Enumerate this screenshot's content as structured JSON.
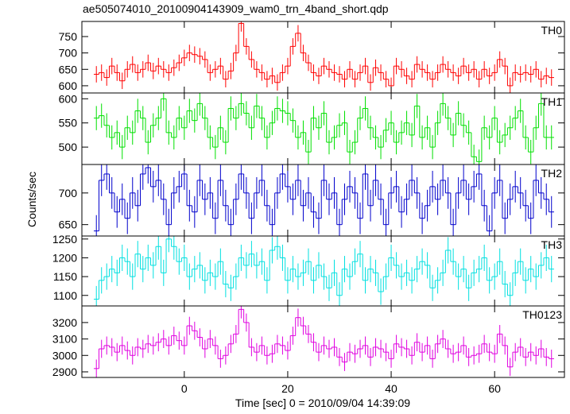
{
  "chart_data": {
    "type": "line",
    "title": "ae505074010_20100904143909_wam0_trn_4band_short.qdp",
    "xlabel": "Time [sec] 0 = 2010/09/04 14:39:09",
    "ylabel": "Counts/sec",
    "xlim": [
      -19.8,
      73.5
    ],
    "xticks": [
      0,
      20,
      40,
      60
    ],
    "x": [
      -17,
      -16,
      -15,
      -14,
      -13,
      -12,
      -11,
      -10,
      -9,
      -8,
      -7,
      -6,
      -5,
      -4,
      -3,
      -2,
      -1,
      0,
      1,
      2,
      3,
      4,
      5,
      6,
      7,
      8,
      9,
      10,
      11,
      12,
      13,
      14,
      15,
      16,
      17,
      18,
      19,
      20,
      21,
      22,
      23,
      24,
      25,
      26,
      27,
      28,
      29,
      30,
      31,
      32,
      33,
      34,
      35,
      36,
      37,
      38,
      39,
      40,
      41,
      42,
      43,
      44,
      45,
      46,
      47,
      48,
      49,
      50,
      51,
      52,
      53,
      54,
      55,
      56,
      57,
      58,
      59,
      60,
      61,
      62,
      63,
      64,
      65,
      66,
      67,
      68,
      69,
      70,
      71
    ],
    "series": [
      {
        "name": "TH0",
        "color": "#ff0000",
        "error": 25,
        "ylim": [
          578,
          796
        ],
        "yticks": [
          600,
          650,
          700,
          750
        ],
        "values": [
          635,
          640,
          625,
          660,
          640,
          615,
          650,
          665,
          640,
          650,
          670,
          645,
          660,
          650,
          640,
          655,
          670,
          685,
          700,
          695,
          690,
          680,
          640,
          650,
          660,
          620,
          645,
          700,
          790,
          720,
          680,
          650,
          640,
          620,
          630,
          610,
          640,
          660,
          720,
          760,
          700,
          670,
          640,
          630,
          660,
          650,
          640,
          635,
          620,
          650,
          620,
          640,
          660,
          610,
          655,
          640,
          620,
          600,
          660,
          650,
          630,
          620,
          665,
          650,
          640,
          620,
          640,
          665,
          650,
          640,
          630,
          660,
          640,
          650,
          620,
          650,
          630,
          640,
          680,
          660,
          600,
          640,
          635,
          640,
          635,
          650,
          620,
          630,
          625
        ]
      },
      {
        "name": "TH1",
        "color": "#00e000",
        "error": 25,
        "ylim": [
          464,
          612
        ],
        "yticks": [
          500,
          550,
          600
        ],
        "values": [
          560,
          565,
          545,
          520,
          530,
          500,
          540,
          530,
          575,
          560,
          510,
          545,
          560,
          600,
          530,
          520,
          560,
          540,
          575,
          555,
          590,
          560,
          520,
          500,
          540,
          510,
          580,
          560,
          590,
          570,
          540,
          585,
          560,
          520,
          550,
          580,
          575,
          570,
          555,
          520,
          530,
          490,
          560,
          540,
          570,
          510,
          520,
          545,
          550,
          490,
          510,
          560,
          580,
          540,
          520,
          500,
          535,
          550,
          510,
          530,
          550,
          525,
          585,
          520,
          540,
          500,
          550,
          590,
          560,
          525,
          570,
          545,
          530,
          480,
          470,
          540,
          520,
          560,
          510,
          525,
          540,
          560,
          575,
          520,
          490,
          540,
          590,
          520,
          520
        ]
      },
      {
        "name": "TH2",
        "color": "#0000cc",
        "error": 25,
        "ylim": [
          632,
          745
        ],
        "yticks": [
          650,
          700
        ],
        "values": [
          640,
          720,
          730,
          700,
          670,
          690,
          660,
          700,
          680,
          730,
          740,
          710,
          720,
          690,
          650,
          700,
          710,
          730,
          680,
          670,
          720,
          690,
          700,
          660,
          720,
          680,
          650,
          690,
          730,
          700,
          660,
          700,
          720,
          680,
          650,
          700,
          730,
          710,
          690,
          720,
          680,
          700,
          670,
          660,
          720,
          690,
          700,
          650,
          690,
          710,
          700,
          660,
          730,
          680,
          720,
          690,
          650,
          700,
          710,
          670,
          690,
          720,
          700,
          660,
          680,
          710,
          690,
          720,
          700,
          650,
          700,
          720,
          690,
          710,
          730,
          680,
          640,
          700,
          720,
          660,
          690,
          710,
          700,
          680,
          660,
          720,
          700,
          690,
          670
        ]
      },
      {
        "name": "TH3",
        "color": "#00e0e0",
        "error": 35,
        "ylim": [
          1072,
          1258
        ],
        "yticks": [
          1100,
          1150,
          1200,
          1250
        ],
        "values": [
          1090,
          1140,
          1150,
          1170,
          1160,
          1200,
          1190,
          1150,
          1210,
          1170,
          1200,
          1180,
          1230,
          1160,
          1250,
          1230,
          1190,
          1200,
          1150,
          1170,
          1180,
          1140,
          1160,
          1150,
          1190,
          1130,
          1120,
          1150,
          1200,
          1180,
          1210,
          1180,
          1190,
          1140,
          1220,
          1230,
          1200,
          1140,
          1170,
          1150,
          1160,
          1190,
          1140,
          1180,
          1150,
          1120,
          1160,
          1100,
          1170,
          1150,
          1190,
          1210,
          1140,
          1170,
          1160,
          1110,
          1150,
          1200,
          1180,
          1150,
          1160,
          1140,
          1170,
          1190,
          1180,
          1120,
          1140,
          1160,
          1220,
          1190,
          1150,
          1170,
          1120,
          1160,
          1170,
          1200,
          1140,
          1150,
          1190,
          1130,
          1100,
          1160,
          1190,
          1140,
          1170,
          1150,
          1180,
          1200,
          1170
        ]
      },
      {
        "name": "TH0123",
        "color": "#e000e0",
        "error": 55,
        "ylim": [
          2866,
          3301
        ],
        "yticks": [
          2900,
          3000,
          3100,
          3200
        ],
        "values": [
          2920,
          3040,
          3060,
          3050,
          3020,
          3060,
          3030,
          3000,
          3050,
          3040,
          3070,
          3060,
          3080,
          3100,
          3060,
          3120,
          3090,
          3060,
          3180,
          3150,
          3110,
          3040,
          3100,
          3060,
          2980,
          3000,
          3070,
          3130,
          3280,
          3200,
          3050,
          3020,
          3060,
          3000,
          3010,
          3070,
          3060,
          3030,
          3120,
          3230,
          3180,
          3130,
          3080,
          3020,
          3060,
          3040,
          3050,
          2990,
          2960,
          3020,
          3010,
          3040,
          3060,
          2990,
          3050,
          3040,
          3020,
          2980,
          3070,
          3050,
          3040,
          3000,
          3080,
          3020,
          3060,
          2980,
          3070,
          3100,
          3040,
          3010,
          3020,
          3060,
          2990,
          3000,
          3010,
          3070,
          3020,
          3010,
          3130,
          3060,
          2930,
          3020,
          3050,
          2990,
          3020,
          3000,
          3040,
          2990,
          2980
        ]
      }
    ]
  }
}
